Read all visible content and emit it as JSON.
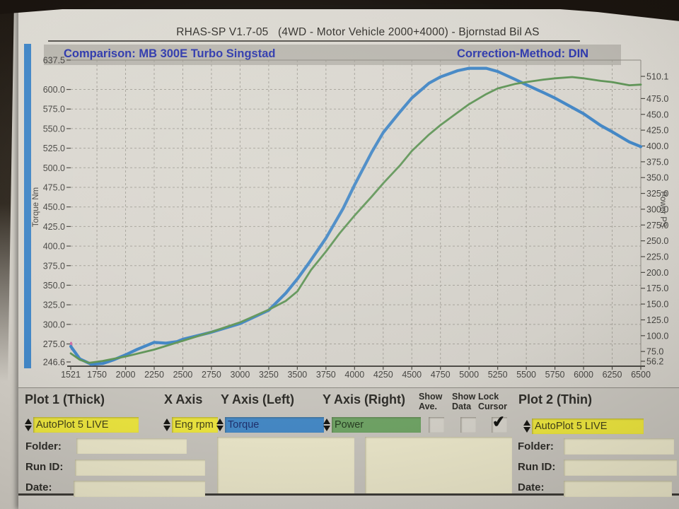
{
  "header": {
    "title": "RHAS-SP V1.7-05   (4WD - Motor Vehicle 2000+4000) - Bjornstad Bil AS",
    "comparison": "Comparison: MB 300E Turbo Singstad",
    "correction": "Correction-Method: DIN"
  },
  "chart_data": {
    "type": "line",
    "title": "Comparison: MB 300E Turbo Singstad",
    "correction_method": "DIN",
    "xlabel": "Eng rpm",
    "xlim": [
      1521,
      6500
    ],
    "x_ticks": [
      1521,
      1750,
      2000,
      2250,
      2500,
      2750,
      3000,
      3250,
      3500,
      3750,
      4000,
      4250,
      4500,
      4750,
      5000,
      5250,
      5500,
      5750,
      6000,
      6250,
      6500
    ],
    "y_left": {
      "label": "Torque Nm",
      "min": 246.6,
      "max": 637.5,
      "ticks": [
        637.5,
        600.0,
        575.0,
        550.0,
        525.0,
        500.0,
        475.0,
        450.0,
        425.0,
        400.0,
        375.0,
        350.0,
        325.0,
        300.0,
        275.0,
        246.6
      ]
    },
    "y_right": {
      "label": "Power PS",
      "min": 56.2,
      "max": 510.1,
      "ticks": [
        510.1,
        475.0,
        450.0,
        425.0,
        400.0,
        375.0,
        350.0,
        325.0,
        300.0,
        275.0,
        250.0,
        225.0,
        200.0,
        175.0,
        150.0,
        125.0,
        100.0,
        75.0,
        56.2
      ]
    },
    "grid": "dashed",
    "series": [
      {
        "name": "Torque",
        "axis": "left",
        "color": "#3f84c4",
        "width": 4.2,
        "points": [
          [
            1521,
            272
          ],
          [
            1600,
            256
          ],
          [
            1700,
            249
          ],
          [
            1800,
            250
          ],
          [
            1900,
            255
          ],
          [
            2000,
            261
          ],
          [
            2100,
            268
          ],
          [
            2250,
            277
          ],
          [
            2350,
            276
          ],
          [
            2450,
            278
          ],
          [
            2500,
            281
          ],
          [
            2750,
            290
          ],
          [
            3000,
            301
          ],
          [
            3250,
            318
          ],
          [
            3400,
            340
          ],
          [
            3500,
            358
          ],
          [
            3600,
            378
          ],
          [
            3750,
            410
          ],
          [
            3900,
            448
          ],
          [
            4000,
            478
          ],
          [
            4150,
            520
          ],
          [
            4250,
            545
          ],
          [
            4400,
            572
          ],
          [
            4500,
            589
          ],
          [
            4650,
            608
          ],
          [
            4750,
            616
          ],
          [
            4900,
            624
          ],
          [
            5000,
            627
          ],
          [
            5150,
            627
          ],
          [
            5250,
            623
          ],
          [
            5400,
            613
          ],
          [
            5500,
            606
          ],
          [
            5650,
            596
          ],
          [
            5750,
            589
          ],
          [
            5900,
            577
          ],
          [
            6000,
            569
          ],
          [
            6150,
            554
          ],
          [
            6250,
            546
          ],
          [
            6400,
            533
          ],
          [
            6500,
            527
          ]
        ]
      },
      {
        "name": "Power",
        "axis": "right",
        "color": "#5d9355",
        "width": 2.8,
        "points": [
          [
            1521,
            72
          ],
          [
            1600,
            62
          ],
          [
            1680,
            57
          ],
          [
            1800,
            60
          ],
          [
            2000,
            67
          ],
          [
            2250,
            78
          ],
          [
            2500,
            92
          ],
          [
            2750,
            106
          ],
          [
            3000,
            121
          ],
          [
            3250,
            141
          ],
          [
            3400,
            155
          ],
          [
            3500,
            170
          ],
          [
            3620,
            204
          ],
          [
            3750,
            233
          ],
          [
            3870,
            262
          ],
          [
            4000,
            290
          ],
          [
            4150,
            320
          ],
          [
            4250,
            341
          ],
          [
            4400,
            370
          ],
          [
            4500,
            392
          ],
          [
            4650,
            418
          ],
          [
            4750,
            433
          ],
          [
            4900,
            453
          ],
          [
            5000,
            466
          ],
          [
            5150,
            482
          ],
          [
            5250,
            491
          ],
          [
            5400,
            498
          ],
          [
            5500,
            501
          ],
          [
            5650,
            505
          ],
          [
            5750,
            507
          ],
          [
            5900,
            509
          ],
          [
            6000,
            507
          ],
          [
            6150,
            503
          ],
          [
            6250,
            501
          ],
          [
            6400,
            496
          ],
          [
            6500,
            497
          ]
        ]
      }
    ],
    "annotations": {
      "start_marker_color": "#cf6ba5"
    },
    "axis_bar_color": "#3f85c6"
  },
  "controls": {
    "plot1_label": "Plot 1 (Thick)",
    "plot1_value": "AutoPlot 5 LIVE",
    "x_axis_label": "X Axis",
    "x_axis_value": "Eng rpm",
    "y_left_label": "Y Axis (Left)",
    "y_left_value": "Torque",
    "y_right_label": "Y Axis (Right)",
    "y_right_value": "Power",
    "show_ave_label": "Show\nAve.",
    "show_data_label": "Show\nData",
    "lock_cursor_label": "Lock\nCursor",
    "show_ave_checked": false,
    "show_data_checked": false,
    "lock_cursor_checked": true,
    "check_glyph": "✔",
    "plot2_label": "Plot 2 (Thin)",
    "plot2_value": "AutoPlot 5 LIVE",
    "folder_label": "Folder:",
    "run_id_label": "Run ID:",
    "date_label": "Date:"
  },
  "colors": {
    "dropdown_yellow": "#ebe43c",
    "dropdown_blue": "#4287c5",
    "dropdown_green": "#6da263",
    "band_gray": "#b8b5ae",
    "panel_gray": "#c6c3bc",
    "field_beige": "#eae6c9",
    "navy_text": "#2a35ab"
  }
}
